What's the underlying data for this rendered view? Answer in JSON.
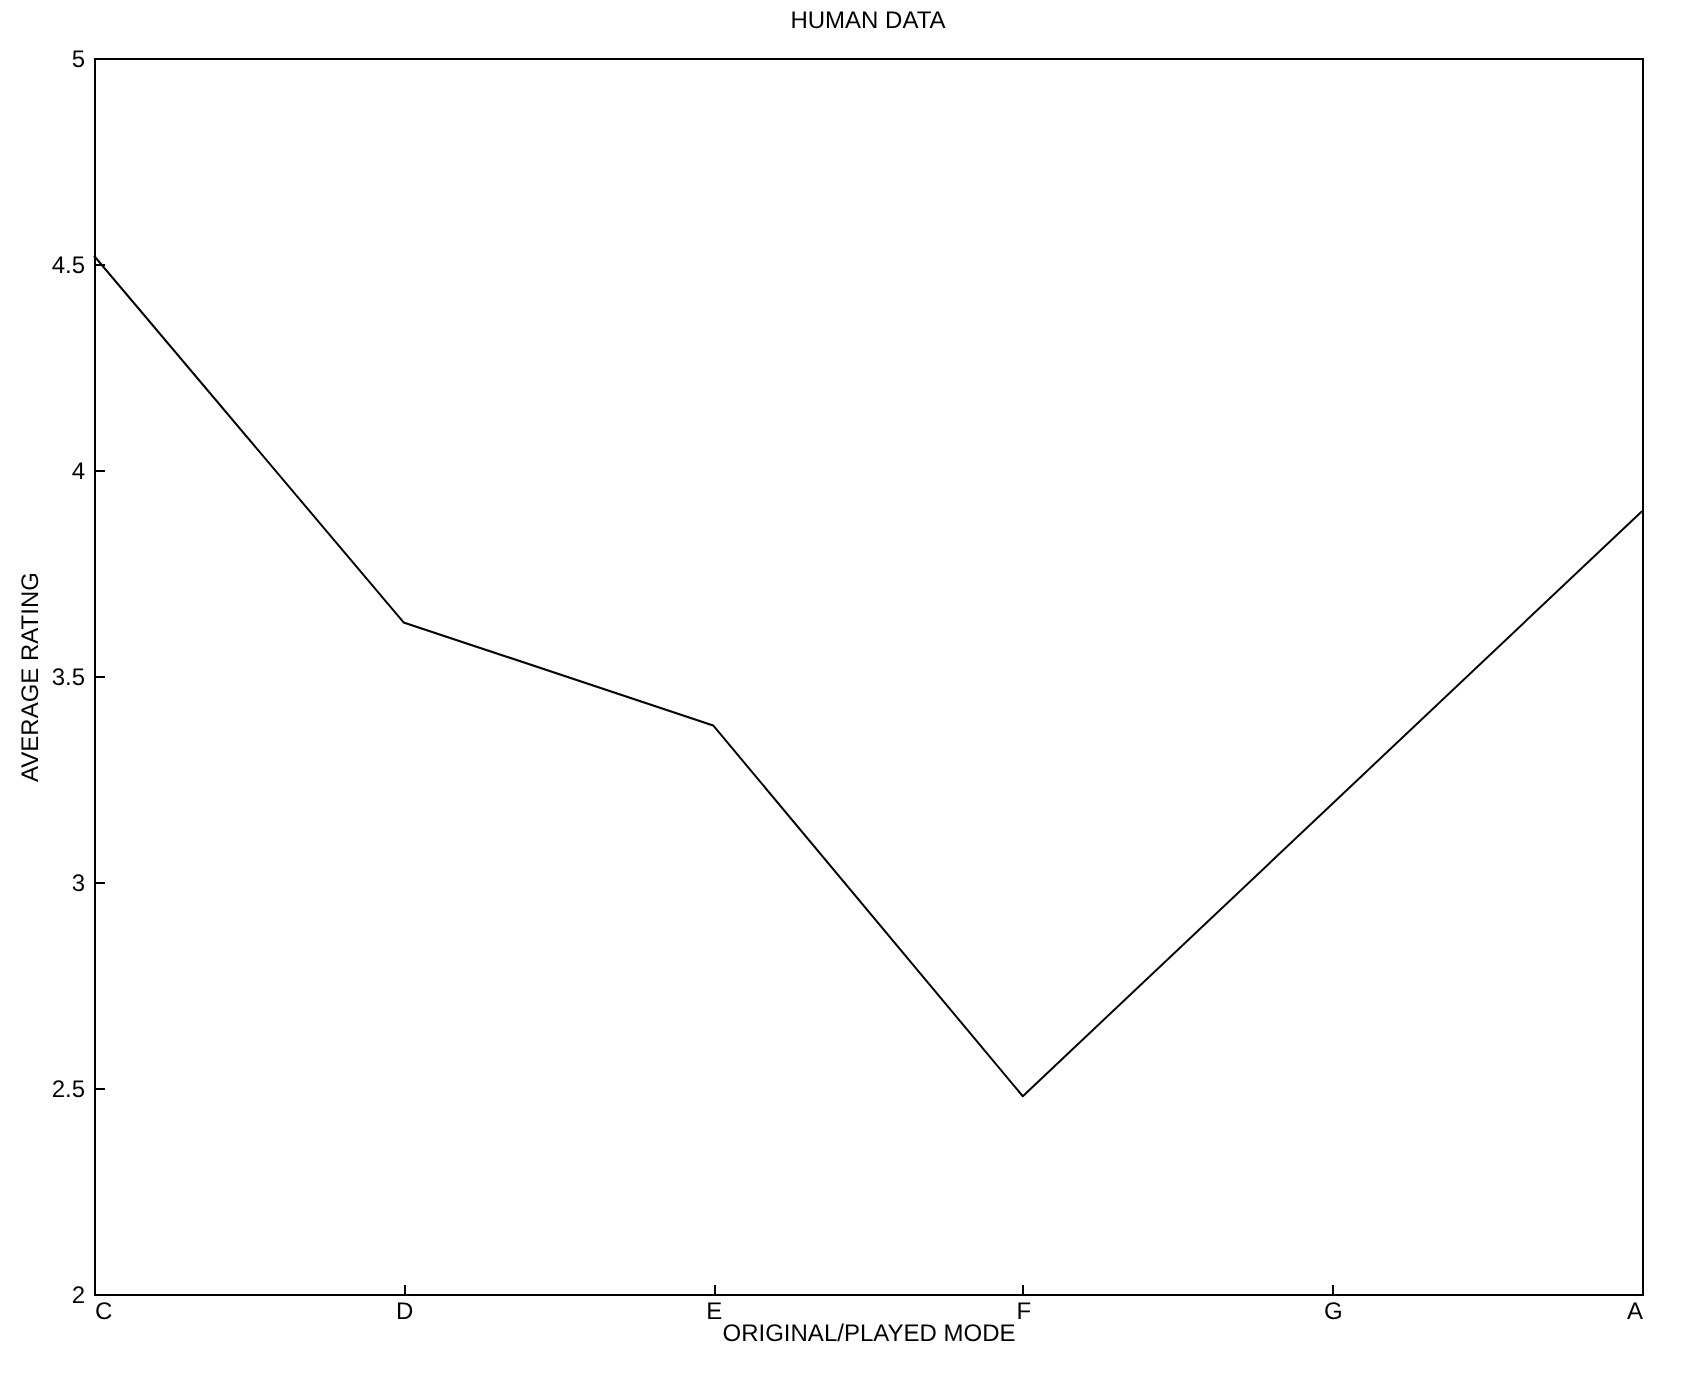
{
  "chart_data": {
    "type": "line",
    "title": "HUMAN DATA",
    "xlabel": "ORIGINAL/PLAYED MODE",
    "ylabel": "AVERAGE RATING",
    "categories": [
      "C",
      "D",
      "E",
      "F",
      "G",
      "A"
    ],
    "series": [
      {
        "color": "#000000",
        "values": [
          4.52,
          3.63,
          3.38,
          2.48,
          3.19,
          3.9
        ]
      }
    ],
    "ylim": [
      2,
      5
    ],
    "yticks": [
      2,
      2.5,
      3,
      3.5,
      4,
      4.5,
      5
    ],
    "grid": false,
    "marker": "none",
    "line_style": "solid"
  }
}
